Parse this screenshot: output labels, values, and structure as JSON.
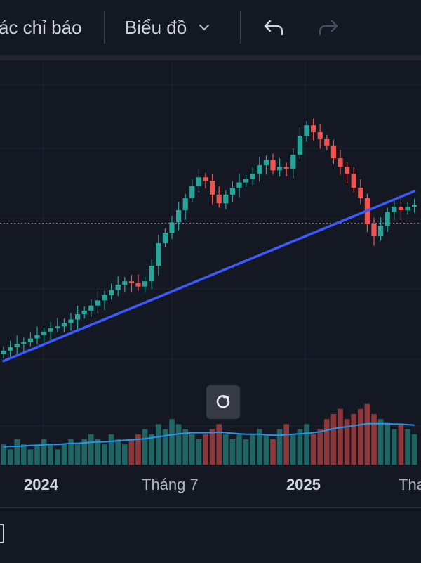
{
  "toolbar": {
    "indicators_label": "ác chỉ báo",
    "chart_type_label": "Biểu đồ",
    "undo_icon": "undo-icon",
    "redo_icon": "redo-icon"
  },
  "time_axis": {
    "labels": [
      {
        "text": "2024",
        "year": true
      },
      {
        "text": "Tháng 7",
        "year": false
      },
      {
        "text": "2025",
        "year": true
      },
      {
        "text": "Tha",
        "year": false
      }
    ]
  },
  "controls": {
    "reset_icon": "reset-rotate-icon",
    "side_icon": "copy-icon"
  },
  "colors": {
    "background": "#141823",
    "up": "#26a69a",
    "down": "#ef5350",
    "trendline": "#3d5afe",
    "volume_ma": "#2196f3",
    "price_line": "#ef5350"
  },
  "chart_data": {
    "type": "candlestick",
    "title": "",
    "closes": [
      13.6,
      13.8,
      14.0,
      14.1,
      14.3,
      14.5,
      14.7,
      14.9,
      15.0,
      15.2,
      15.4,
      15.7,
      15.9,
      16.2,
      16.5,
      16.8,
      17.1,
      17.4,
      17.6,
      17.5,
      17.3,
      17.6,
      18.5,
      19.8,
      20.4,
      21.0,
      21.7,
      22.4,
      23.1,
      23.6,
      23.4,
      22.6,
      22.1,
      22.6,
      23.0,
      23.3,
      23.5,
      23.8,
      24.3,
      24.6,
      24.0,
      24.2,
      24.1,
      24.9,
      26.0,
      26.6,
      26.2,
      25.8,
      25.4,
      24.7,
      24.2,
      23.8,
      23.0,
      22.4,
      20.9,
      20.2,
      20.8,
      21.6,
      21.9,
      21.7,
      21.9,
      22.0
    ],
    "volumes": [
      4,
      3,
      5,
      4,
      3,
      4,
      5,
      4,
      3,
      4,
      5,
      4,
      5,
      6,
      5,
      4,
      6,
      5,
      4,
      5,
      6,
      7,
      6,
      8,
      7,
      9,
      8,
      7,
      6,
      5,
      6,
      7,
      8,
      6,
      5,
      6,
      5,
      6,
      7,
      6,
      5,
      7,
      8,
      6,
      7,
      8,
      6,
      7,
      9,
      10,
      11,
      9,
      10,
      11,
      12,
      10,
      9,
      8,
      7,
      8,
      7,
      6
    ],
    "volume_ma": [
      3.5,
      3.6,
      3.6,
      3.7,
      3.8,
      3.8,
      3.9,
      4.0,
      4.0,
      4.1,
      4.2,
      4.2,
      4.3,
      4.4,
      4.5,
      4.5,
      4.6,
      4.7,
      4.8,
      4.9,
      5.0,
      5.1,
      5.3,
      5.5,
      5.7,
      5.9,
      6.1,
      6.2,
      6.3,
      6.3,
      6.3,
      6.3,
      6.4,
      6.3,
      6.2,
      6.1,
      6.0,
      6.0,
      6.0,
      5.9,
      5.8,
      5.8,
      5.9,
      6.0,
      6.1,
      6.2,
      6.3,
      6.5,
      6.8,
      7.1,
      7.3,
      7.5,
      7.7,
      7.9,
      8.1,
      8.1,
      8.1,
      8.1,
      8.0,
      8.0,
      7.9,
      7.8
    ],
    "trendline": {
      "start": [
        0,
        13.0
      ],
      "end": [
        61,
        22.8
      ]
    },
    "price_line": 20.95
  }
}
